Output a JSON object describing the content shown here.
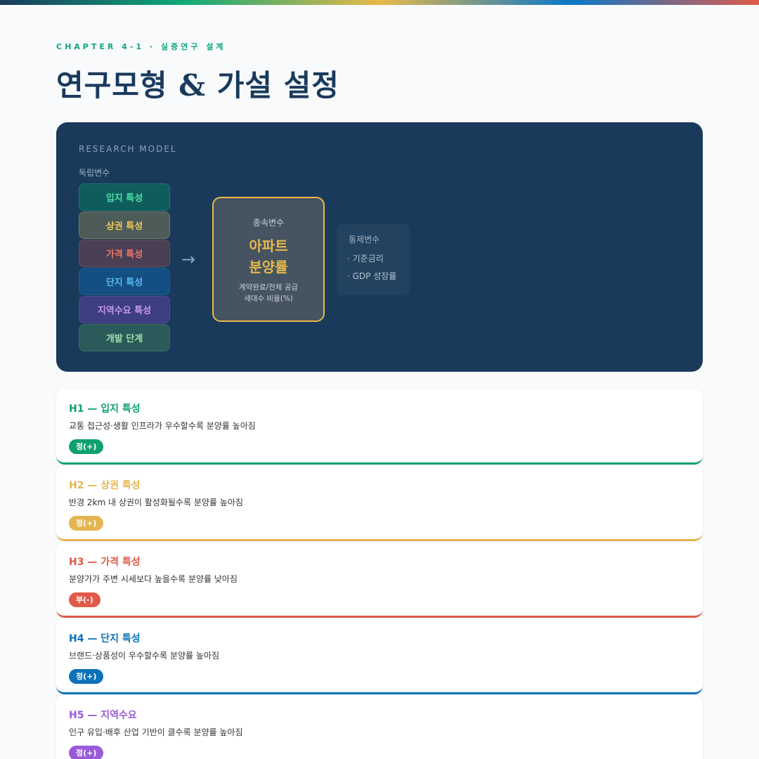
{
  "header": {
    "eyebrow": "CHAPTER 4-1 · 실증연구 설계",
    "title": "연구모형 & 가설 설정"
  },
  "model": {
    "label": "RESEARCH MODEL",
    "independent_label": "독립변수",
    "independent": [
      {
        "label": "입지 특성",
        "color": "#4ee0a8",
        "bg": "#0f5c5c",
        "border": "#1a7a6e"
      },
      {
        "label": "상권 특성",
        "color": "#f0c860",
        "bg": "#4d5c58",
        "border": "#7a7a58"
      },
      {
        "label": "가격 특성",
        "color": "#f07868",
        "bg": "#4a3f55",
        "border": "#6e4a55"
      },
      {
        "label": "단지 특성",
        "color": "#58b8f0",
        "bg": "#134f82",
        "border": "#1a5f95"
      },
      {
        "label": "지역수요 특성",
        "color": "#c898f0",
        "bg": "#3d3f80",
        "border": "#524a95"
      },
      {
        "label": "개발 단계",
        "color": "#98e0a8",
        "bg": "#2a5a5a",
        "border": "#3a6e62"
      }
    ],
    "arrow_icon": "arrow-right-icon",
    "dependent": {
      "label": "종속변수",
      "name_line1": "아파트",
      "name_line2": "분양률",
      "desc_line1": "계약완료/전체 공급",
      "desc_line2": "세대수 비율(%)"
    },
    "control": {
      "label": "통제변수",
      "items": [
        "· 기준금리",
        "· GDP 성장률"
      ]
    }
  },
  "hypotheses": [
    {
      "title": "H1 — 입지 특성",
      "desc": "교통 접근성·생활 인프라가 우수할수록 분양률 높아짐",
      "badge": "정(+)",
      "color": "#0fa070"
    },
    {
      "title": "H2 — 상권 특성",
      "desc": "반경 2km 내 상권이 활성화될수록 분양률 높아짐",
      "badge": "정(+)",
      "color": "#e4b450"
    },
    {
      "title": "H3 — 가격 특성",
      "desc": "분양가가 주변 시세보다 높을수록 분양률 낮아짐",
      "badge": "부(-)",
      "color": "#e05a48"
    },
    {
      "title": "H4 — 단지 특성",
      "desc": "브랜드·상품성이 우수할수록 분양률 높아짐",
      "badge": "정(+)",
      "color": "#0a72b8"
    },
    {
      "title": "H5 — 지역수요",
      "desc": "인구 유입·배후 산업 기반이 클수록 분양률 높아짐",
      "badge": "정(+)",
      "color": "#9a5ad8"
    }
  ]
}
